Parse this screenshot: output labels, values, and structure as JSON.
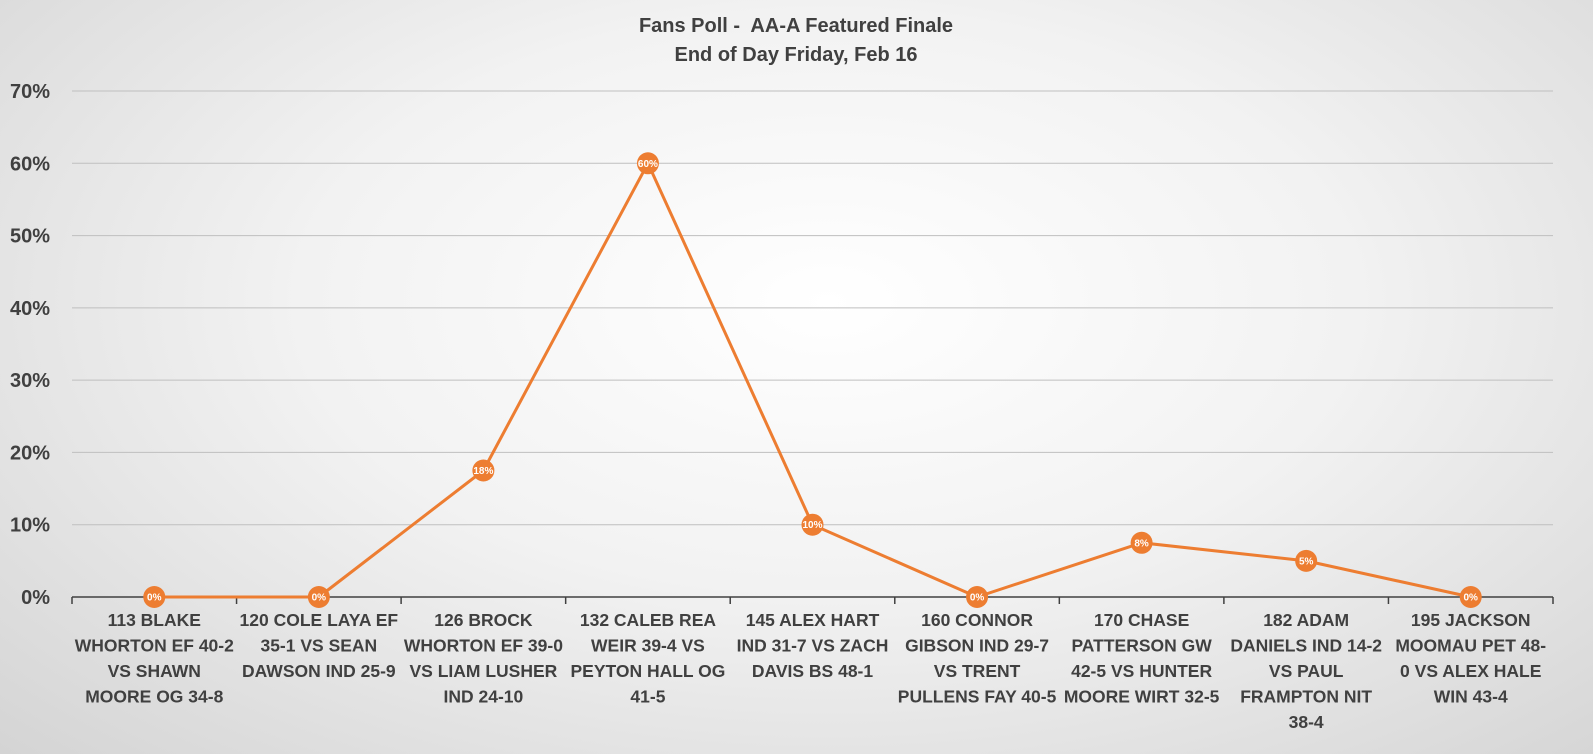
{
  "chart_data": {
    "type": "line",
    "title": "Fans Poll -  AA-A Featured Finale",
    "subtitle": "End of Day Friday, Feb 16",
    "xlabel": "",
    "ylabel": "",
    "ylim": [
      0,
      70
    ],
    "yticks": [
      "0%",
      "10%",
      "20%",
      "30%",
      "40%",
      "50%",
      "60%",
      "70%"
    ],
    "grid": true,
    "legend": "none",
    "categories": [
      "113 BLAKE WHORTON EF 40-2 VS SHAWN MOORE OG 34-8",
      "120 COLE LAYA EF 35-1 VS SEAN DAWSON IND 25-9",
      "126 BROCK WHORTON EF 39-0 VS LIAM LUSHER IND 24-10",
      "132 CALEB REA WEIR 39-4 VS PEYTON HALL OG 41-5",
      "145 ALEX HART IND 31-7 VS ZACH DAVIS BS 48-1",
      "160 CONNOR GIBSON IND 29-7 VS TRENT PULLENS FAY 40-5",
      "170 CHASE PATTERSON GW 42-5 VS HUNTER MOORE WIRT 32-5",
      "182 ADAM DANIELS IND 14-2 VS PAUL FRAMPTON NIT 38-4",
      "195 JACKSON MOOMAU PET 48-0 VS ALEX HALE WIN 43-4"
    ],
    "category_lines": [
      [
        "113 BLAKE",
        "WHORTON  EF 40-2",
        "VS SHAWN",
        "MOORE  OG 34-8"
      ],
      [
        "120 COLE LAYA EF",
        "35-1 VS SEAN",
        "DAWSON IND 25-9"
      ],
      [
        "126 BROCK",
        "WHORTON  EF 39-0",
        "VS LIAM LUSHER",
        "IND 24-10"
      ],
      [
        "132 CALEB REA",
        "WEIR 39-4 VS",
        "PEYTON  HALL OG",
        "41-5"
      ],
      [
        "145 ALEX HART",
        "IND 31-7 VS ZACH",
        "DAVIS BS 48-1"
      ],
      [
        "160 CONNOR",
        "GIBSON  IND 29-7",
        "VS TRENT",
        "PULLENS FAY 40-5"
      ],
      [
        "170 CHASE",
        "PATTERSON  GW",
        "42-5 VS HUNTER",
        "MOORE  WIRT 32-5"
      ],
      [
        "182 ADAM",
        "DANIELS IND 14-2",
        "VS PAUL",
        "FRAMPTON  NIT",
        "38-4"
      ],
      [
        "195 JACKSON",
        "MOOMAU  PET 48-",
        "0 VS ALEX HALE",
        "WIN 43-4"
      ]
    ],
    "series": [
      {
        "values": [
          0,
          0,
          17.5,
          60,
          10,
          0,
          7.5,
          5,
          0
        ],
        "data_labels": [
          "0%",
          "0%",
          "18%",
          "60%",
          "10%",
          "0%",
          "8%",
          "5%",
          "0%"
        ],
        "color": "#ED7D31"
      }
    ],
    "colors": {
      "line": "#ED7D31",
      "grid": "#bfbfbf",
      "axis": "#404040",
      "text": "#404040"
    }
  }
}
